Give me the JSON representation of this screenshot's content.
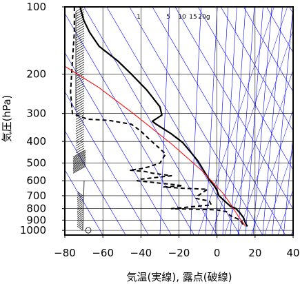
{
  "chart_data": {
    "type": "line",
    "xlabel": "気温(実線), 露点(破線)",
    "ylabel": "気圧(hPa)",
    "xlim": [
      -80,
      40
    ],
    "ylim": [
      1050,
      100
    ],
    "y_scale": "log",
    "x_ticks": [
      "−80",
      "−60",
      "−40",
      "−20",
      "0",
      "20",
      "40"
    ],
    "x_tick_values": [
      -80,
      -60,
      -40,
      -20,
      0,
      20,
      40
    ],
    "y_ticks": [
      "100",
      "200",
      "300",
      "400",
      "500",
      "600",
      "700",
      "800",
      "900",
      "1000"
    ],
    "y_tick_values": [
      100,
      200,
      300,
      400,
      500,
      600,
      700,
      800,
      900,
      1000
    ],
    "mixing_ratio_labels": [
      "1",
      "5",
      "10",
      "15",
      "20g"
    ],
    "colors": {
      "temperature": "#000000",
      "dewpoint": "#000000",
      "parcel": "#ff0000",
      "guides": "#0000ff",
      "grid": "#000000",
      "wind": "#000000"
    },
    "series": [
      {
        "kind": "temperature",
        "style": "solid",
        "points": [
          [
            -72,
            100
          ],
          [
            -70,
            115
          ],
          [
            -67,
            130
          ],
          [
            -62,
            150
          ],
          [
            -52,
            175
          ],
          [
            -45,
            200
          ],
          [
            -37,
            235
          ],
          [
            -30,
            280
          ],
          [
            -29,
            305
          ],
          [
            -34,
            325
          ],
          [
            -32,
            335
          ],
          [
            -24,
            370
          ],
          [
            -18,
            405
          ],
          [
            -14,
            445
          ],
          [
            -10,
            490
          ],
          [
            -7,
            540
          ],
          [
            -4,
            595
          ],
          [
            -1,
            640
          ],
          [
            0,
            665
          ],
          [
            1,
            700
          ],
          [
            4,
            740
          ],
          [
            7,
            780
          ],
          [
            10,
            800
          ],
          [
            12,
            835
          ],
          [
            14,
            880
          ],
          [
            15,
            930
          ],
          [
            16,
            960
          ]
        ]
      },
      {
        "kind": "dewpoint",
        "style": "dashed",
        "points": [
          [
            -75,
            100
          ],
          [
            -75,
            130
          ],
          [
            -76,
            175
          ],
          [
            -77,
            240
          ],
          [
            -76,
            300
          ],
          [
            -68,
            318
          ],
          [
            -57,
            322
          ],
          [
            -45,
            335
          ],
          [
            -40,
            360
          ],
          [
            -35,
            395
          ],
          [
            -27,
            455
          ],
          [
            -30,
            500
          ],
          [
            -36,
            520
          ],
          [
            -40,
            530
          ],
          [
            -46,
            538
          ],
          [
            -38,
            545
          ],
          [
            -34,
            555
          ],
          [
            -24,
            570
          ],
          [
            -40,
            590
          ],
          [
            -42,
            600
          ],
          [
            -30,
            615
          ],
          [
            -22,
            625
          ],
          [
            -18,
            632
          ],
          [
            -28,
            640
          ],
          [
            -18,
            648
          ],
          [
            -5,
            655
          ],
          [
            -10,
            700
          ],
          [
            -11,
            720
          ],
          [
            -4,
            740
          ],
          [
            -3,
            770
          ],
          [
            -24,
            800
          ],
          [
            -10,
            805
          ],
          [
            0,
            810
          ],
          [
            5,
            825
          ],
          [
            7,
            860
          ],
          [
            11,
            890
          ],
          [
            13,
            920
          ],
          [
            14,
            950
          ]
        ]
      },
      {
        "kind": "parcel",
        "style": "solid-red",
        "points": [
          [
            15,
            960
          ],
          [
            11,
            860
          ],
          [
            7,
            760
          ],
          [
            3,
            680
          ],
          [
            -8,
            540
          ],
          [
            -24,
            410
          ],
          [
            -44,
            300
          ],
          [
            -62,
            230
          ],
          [
            -82,
            180
          ]
        ]
      }
    ]
  }
}
